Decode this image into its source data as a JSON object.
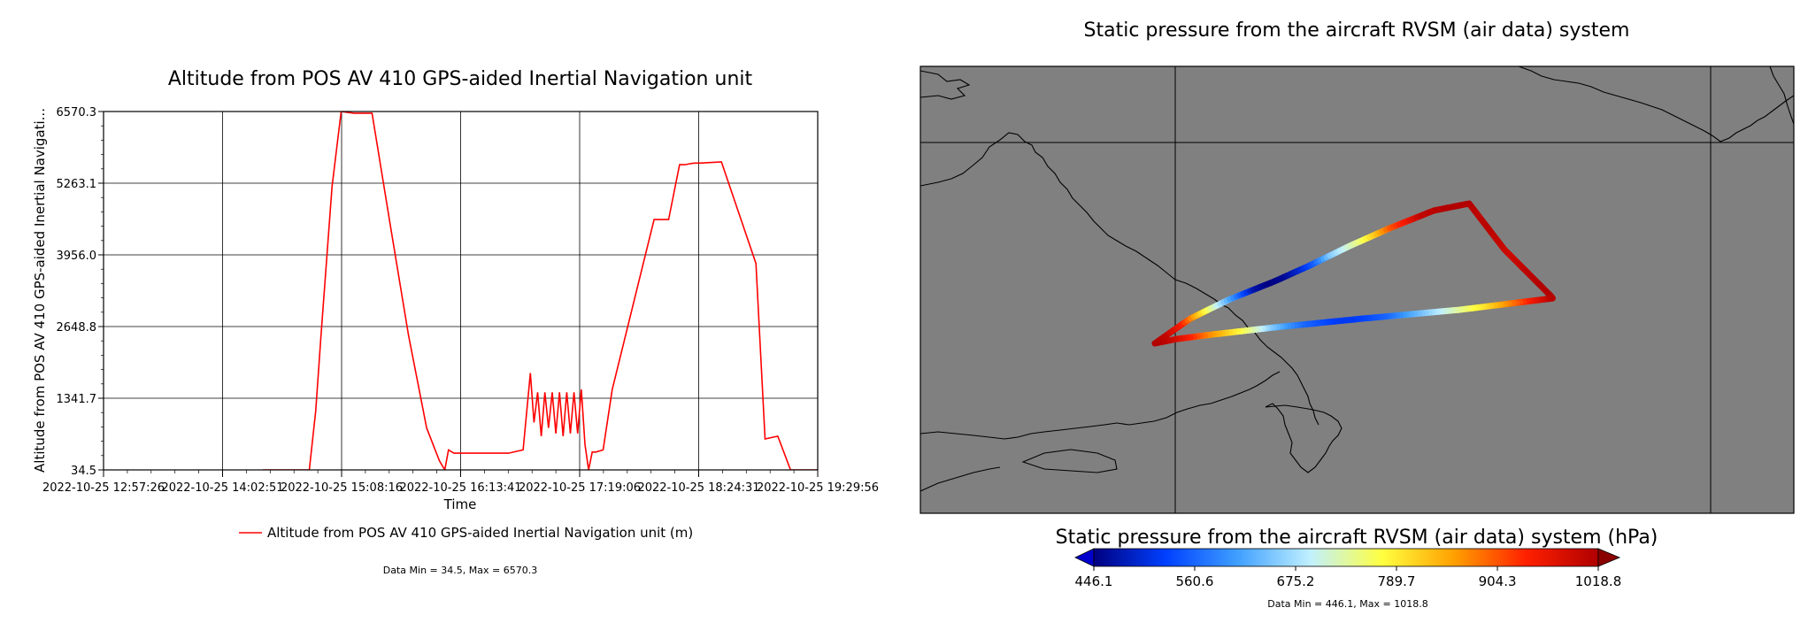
{
  "left_chart": {
    "title": "Altitude from POS AV 410 GPS-aided Inertial Navigation unit",
    "ylabel": "Altitude from POS AV 410 GPS-aided Inertial Navigati...",
    "xlabel": "Time",
    "legend_label": "Altitude from POS AV 410 GPS-aided Inertial Navigation unit (m)",
    "data_summary": "Data Min = 34.5, Max = 6570.3",
    "line_color": "#ff0000"
  },
  "right_chart": {
    "title": "Static pressure from the aircraft RVSM (air data) system",
    "colorbar_label": "Static pressure from the aircraft RVSM (air data) system (hPa)",
    "colorbar_ticks": [
      "446.1",
      "560.6",
      "675.2",
      "789.7",
      "904.3",
      "1018.8"
    ],
    "data_summary": "Data Min = 446.1, Max = 1018.8",
    "map_background": "#808080"
  },
  "chart_data": [
    {
      "type": "line",
      "title": "Altitude from POS AV 410 GPS-aided Inertial Navigation unit",
      "xlabel": "Time",
      "ylabel": "Altitude from POS AV 410 GPS-aided Inertial Navigati...",
      "x_tick_labels": [
        "2022-10-25 12:57:26",
        "2022-10-25 14:02:51",
        "2022-10-25 15:08:16",
        "2022-10-25 16:13:41",
        "2022-10-25 17:19:06",
        "2022-10-25 18:24:31",
        "2022-10-25 19:29:56"
      ],
      "y_ticks": [
        34.5,
        1341.7,
        2648.8,
        3956.0,
        5263.1,
        6570.3
      ],
      "y_tick_labels": [
        "34.5",
        "1341.7",
        "2648.8",
        "3956.0",
        "5263.1",
        "6570.3"
      ],
      "ylim": [
        34.5,
        6570.3
      ],
      "xlim": [
        "2022-10-25 12:57:26",
        "2022-10-25 19:29:56"
      ],
      "grid": true,
      "legend": "bottom",
      "series": [
        {
          "name": "Altitude from POS AV 410 GPS-aided Inertial Navigation unit (m)",
          "color": "#ff0000",
          "x": [
            "2022-10-25 14:25:00",
            "2022-10-25 14:50:30",
            "2022-10-25 14:54:00",
            "2022-10-25 14:57:00",
            "2022-10-25 15:03:00",
            "2022-10-25 15:08:00",
            "2022-10-25 15:15:00",
            "2022-10-25 15:25:00",
            "2022-10-25 15:35:00",
            "2022-10-25 15:45:00",
            "2022-10-25 15:55:00",
            "2022-10-25 16:02:00",
            "2022-10-25 16:05:00",
            "2022-10-25 16:07:00",
            "2022-10-25 16:10:00",
            "2022-10-25 16:40:00",
            "2022-10-25 16:48:00",
            "2022-10-25 16:52:00",
            "2022-10-25 16:54:00",
            "2022-10-25 16:56:00",
            "2022-10-25 16:58:00",
            "2022-10-25 17:00:00",
            "2022-10-25 17:02:00",
            "2022-10-25 17:04:00",
            "2022-10-25 17:06:00",
            "2022-10-25 17:08:00",
            "2022-10-25 17:10:00",
            "2022-10-25 17:12:00",
            "2022-10-25 17:14:00",
            "2022-10-25 17:16:00",
            "2022-10-25 17:18:00",
            "2022-10-25 17:20:00",
            "2022-10-25 17:22:00",
            "2022-10-25 17:24:00",
            "2022-10-25 17:26:00",
            "2022-10-25 17:28:00",
            "2022-10-25 17:30:00",
            "2022-10-25 17:32:00",
            "2022-10-25 17:37:00",
            "2022-10-25 18:00:00",
            "2022-10-25 18:08:00",
            "2022-10-25 18:14:00",
            "2022-10-25 18:17:00",
            "2022-10-25 18:20:00",
            "2022-10-25 18:22:00",
            "2022-10-25 18:25:00",
            "2022-10-25 18:37:00",
            "2022-10-25 18:56:00",
            "2022-10-25 19:01:00",
            "2022-10-25 19:08:00",
            "2022-10-25 19:15:00",
            "2022-10-25 19:19:00",
            "2022-10-25 19:22:00",
            "2022-10-25 19:25:00",
            "2022-10-25 19:29:56"
          ],
          "y": [
            34.5,
            34.5,
            1100,
            2500,
            5200,
            6570,
            6540,
            6540,
            4500,
            2500,
            800,
            200,
            34.5,
            400,
            340,
            340,
            400,
            1800,
            900,
            1450,
            650,
            1450,
            800,
            1450,
            700,
            1450,
            650,
            1450,
            700,
            1450,
            700,
            1500,
            500,
            34.5,
            360,
            360,
            380,
            400,
            1500,
            4600,
            4600,
            5600,
            5600,
            5620,
            5630,
            5630,
            5650,
            3800,
            600,
            650,
            34.5,
            34.5,
            34.5,
            34.5,
            34.5
          ]
        }
      ]
    },
    {
      "type": "heatmap",
      "title": "Static pressure from the aircraft RVSM (air data) system",
      "colorbar_label": "Static pressure from the aircraft RVSM (air data) system (hPa)",
      "colorbar_range": [
        446.1,
        1018.8
      ],
      "colorbar_ticks": [
        446.1,
        560.6,
        675.2,
        789.7,
        904.3,
        1018.8
      ],
      "colormap": [
        "#000080",
        "#0040ff",
        "#40a0ff",
        "#c0f0ff",
        "#ffff40",
        "#ffa000",
        "#ff2000",
        "#b00000"
      ],
      "track_pressure": [
        1018.8,
        1000,
        950,
        850,
        750,
        650,
        560,
        470,
        446.1,
        460,
        500,
        560,
        650,
        700,
        750,
        820,
        900,
        950,
        1000,
        1010,
        1018,
        1015,
        1005,
        1010,
        1000,
        990,
        1000,
        1010,
        1018,
        1010,
        960,
        900,
        850,
        800,
        760,
        720,
        680,
        640,
        600,
        560,
        540,
        520,
        520,
        540,
        560,
        600,
        650,
        720,
        780,
        830,
        880,
        940,
        990,
        1018.8
      ],
      "legend": "bottom"
    }
  ]
}
